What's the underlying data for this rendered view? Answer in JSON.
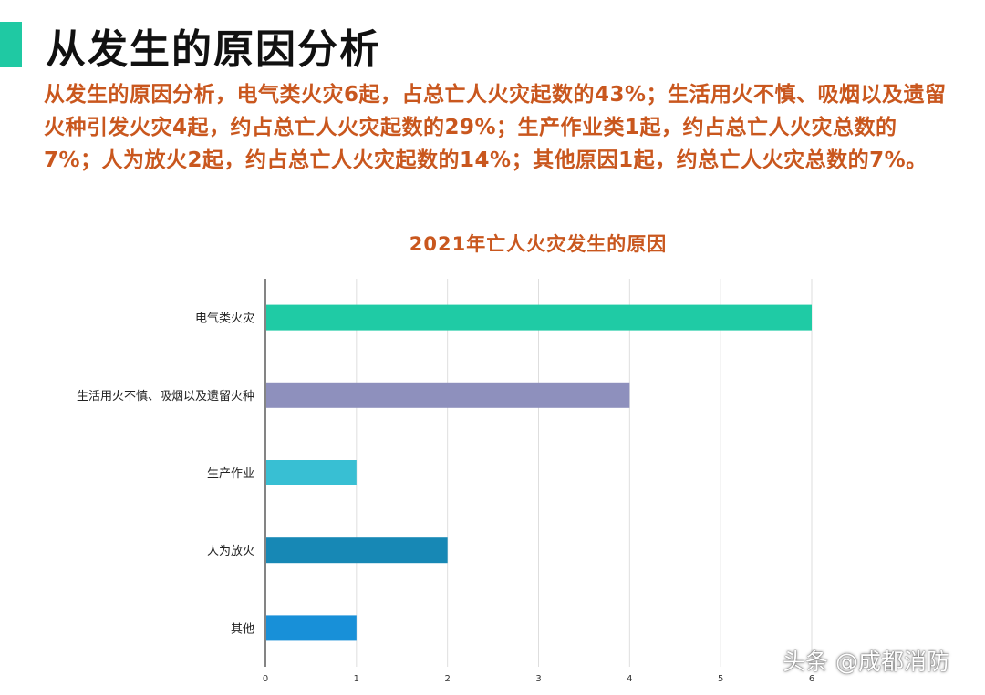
{
  "heading": "从发生的原因分析",
  "summary": "从发生的原因分析，电气类火灾6起，占总亡人火灾起数的43%；生活用火不慎、吸烟以及遗留火种引发火灾4起，约占总亡人火灾起数的29%；生产作业类1起，约占总亡人火灾总数的7%；人为放火2起，约占总亡人火灾起数的14%；其他原因1起，约总亡人火灾总数的7%。",
  "watermark": "头条 @成都消防",
  "colors": {
    "accent": "#1fc9a3",
    "title_text": "#c9571e",
    "summary_text": "#c9571e"
  },
  "chart_data": {
    "type": "bar",
    "orientation": "horizontal",
    "title": "2021年亡人火灾发生的原因",
    "xlabel": "",
    "ylabel": "",
    "categories": [
      "电气类火灾",
      "生活用火不慎、吸烟以及遗留火种",
      "生产作业",
      "人为放火",
      "其他"
    ],
    "values": [
      6,
      4,
      1,
      2,
      1
    ],
    "bar_colors": [
      "#1fcba5",
      "#8e90bd",
      "#38bfd3",
      "#1788b5",
      "#1890d8"
    ],
    "xlim": [
      0,
      6
    ],
    "xticks": [
      "0",
      "1",
      "2",
      "3",
      "4",
      "5",
      "6"
    ],
    "grid": true,
    "legend": "none"
  }
}
